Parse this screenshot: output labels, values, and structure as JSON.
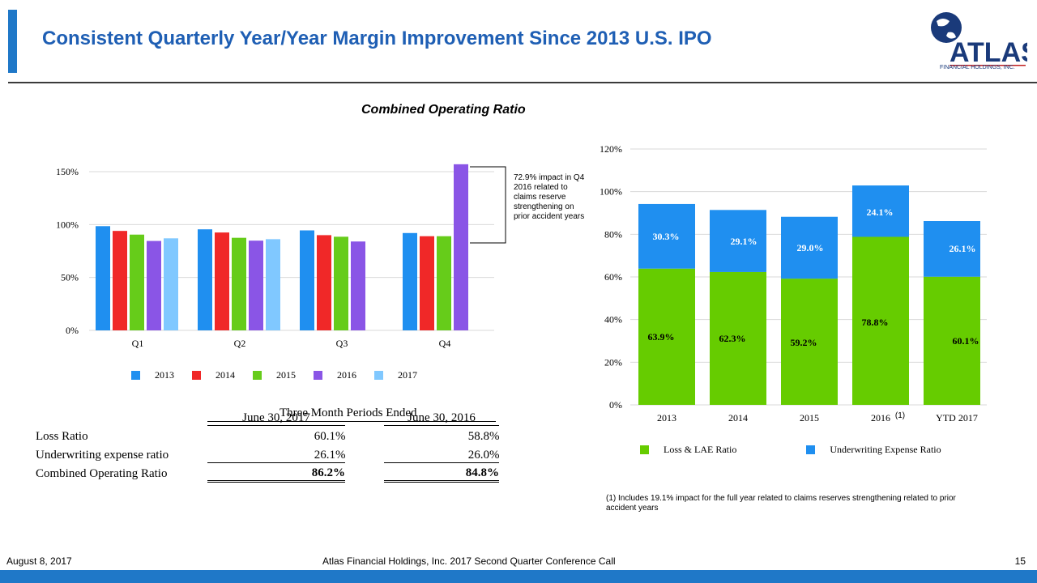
{
  "header": {
    "title": "Consistent Quarterly Year/Year Margin Improvement Since 2013 U.S. IPO",
    "logo_text": "ATLAS",
    "logo_subtitle": "FINANCIAL HOLDINGS, INC."
  },
  "chart_heading": "Combined Operating Ratio",
  "colors": {
    "2013": "#1f8ff0",
    "2014": "#f02828",
    "2015": "#66cc1a",
    "2016": "#8a55e6",
    "2017": "#80c8ff",
    "loss": "#66cc00",
    "underwriting": "#1f8ff0"
  },
  "chart_data": [
    {
      "type": "bar",
      "title": "",
      "categories": [
        "Q1",
        "Q2",
        "Q3",
        "Q4"
      ],
      "series": [
        {
          "name": "2013",
          "values": [
            98.5,
            95.5,
            94.5,
            92.0
          ]
        },
        {
          "name": "2014",
          "values": [
            94.0,
            92.5,
            90.0,
            89.0
          ]
        },
        {
          "name": "2015",
          "values": [
            90.5,
            87.5,
            88.5,
            89.0
          ]
        },
        {
          "name": "2016",
          "values": [
            84.5,
            84.8,
            84.0,
            157.0
          ]
        },
        {
          "name": "2017",
          "values": [
            87.0,
            86.2,
            null,
            null
          ]
        }
      ],
      "yticks": [
        "0%",
        "50%",
        "100%",
        "150%"
      ],
      "ylim": [
        0,
        150
      ],
      "annotation": "72.9% impact in Q4 2016 related to claims reserve strengthening on prior accident years"
    },
    {
      "type": "bar",
      "stacked": true,
      "categories": [
        "2013",
        "2014",
        "2015",
        "2016",
        "YTD 2017"
      ],
      "category_note": {
        "2016": "(1)"
      },
      "series": [
        {
          "name": "Loss & LAE Ratio",
          "values": [
            63.9,
            62.3,
            59.2,
            78.8,
            60.1
          ],
          "labels": [
            "63.9%",
            "62.3%",
            "59.2%",
            "78.8%",
            "60.1%"
          ]
        },
        {
          "name": "Underwriting Expense Ratio",
          "values": [
            30.3,
            29.1,
            29.0,
            24.1,
            26.1
          ],
          "labels": [
            "30.3%",
            "29.1%",
            "29.0%",
            "24.1%",
            "26.1%"
          ]
        }
      ],
      "yticks": [
        "0%",
        "20%",
        "40%",
        "60%",
        "80%",
        "100%",
        "120%"
      ],
      "ylim": [
        0,
        120
      ]
    }
  ],
  "table": {
    "heading": "Three Month Periods Ended",
    "columns": [
      "June 30, 2017",
      "June 30, 2016"
    ],
    "rows": [
      {
        "label": "Loss Ratio",
        "v1": "60.1",
        "v2": "58.8",
        "s1": "%",
        "s2": "%"
      },
      {
        "label": "Underwriting expense ratio",
        "v1": "26.1",
        "v2": "26.0",
        "s1": "%",
        "s2": "%"
      },
      {
        "label": "Combined Operating Ratio",
        "v1": "86.2%",
        "v2": "84.8%",
        "s1": "",
        "s2": ""
      }
    ]
  },
  "footnote": "(1) Includes 19.1% impact for the full year related to claims reserves strengthening related to prior accident years",
  "footer": {
    "date": "August 8, 2017",
    "center": "Atlas Financial Holdings, Inc. 2017 Second Quarter Conference Call",
    "page": "15"
  }
}
